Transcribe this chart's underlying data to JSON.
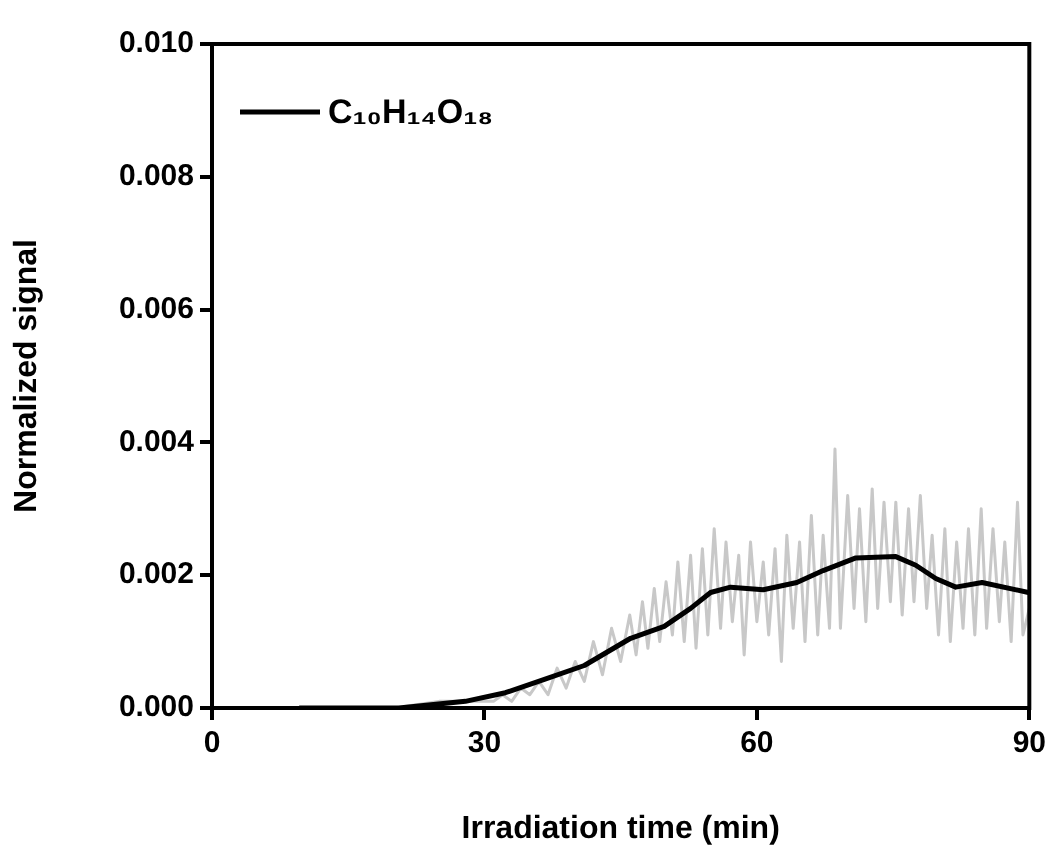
{
  "chart_data": {
    "type": "line",
    "xlabel": "Irradiation time (min)",
    "ylabel": "Normalized signal",
    "xlim": [
      0,
      90
    ],
    "xticks": [
      0,
      30,
      60,
      90
    ],
    "ylim": [
      0,
      0.01
    ],
    "yticks": [
      {
        "value": 0,
        "label": "0.000"
      },
      {
        "value": 0.002,
        "label": "0.002"
      },
      {
        "value": 0.004,
        "label": "0.004"
      },
      {
        "value": 0.006,
        "label": "0.006"
      },
      {
        "value": 0.008,
        "label": "0.008"
      },
      {
        "value": 0.01,
        "label": "0.010"
      }
    ],
    "grid": false,
    "legend": "top left",
    "marker": "none",
    "series": [
      {
        "name": "C₁₀H₁₄O₁₈",
        "color": "#000000",
        "x": [
          9.6,
          20.6,
          27.9,
          32.3,
          36.6,
          41,
          46.1,
          49.8,
          52.7,
          54.9,
          57.1,
          60.7,
          64.4,
          67.3,
          70.9,
          75.3,
          77.5,
          79.7,
          81.9,
          84.8,
          89.9
        ],
        "values": [
          0,
          0,
          0.0001,
          0.00023,
          0.00043,
          0.00064,
          0.00105,
          0.00123,
          0.0015,
          0.00174,
          0.00182,
          0.00178,
          0.00189,
          0.00207,
          0.00226,
          0.00228,
          0.00215,
          0.00195,
          0.00182,
          0.00189,
          0.00174
        ]
      },
      {
        "color": "#c8c8c8",
        "x": [
          20,
          25,
          28,
          30,
          31,
          32,
          33,
          34,
          35,
          36,
          37,
          38,
          39,
          40,
          41,
          42,
          43,
          44,
          45,
          46,
          46.7,
          47.4,
          48,
          48.7,
          49.3,
          50,
          50.7,
          51.3,
          52,
          52.7,
          53.3,
          54,
          54.6,
          55.3,
          56,
          56.6,
          57.3,
          58,
          58.6,
          59.3,
          60,
          60.7,
          61.3,
          62,
          62.7,
          63.3,
          64,
          64.7,
          65.3,
          66,
          66.7,
          67.3,
          68,
          68.6,
          69.2,
          70,
          70.7,
          71.3,
          72,
          72.7,
          73.3,
          74,
          74.7,
          75.3,
          76,
          76.7,
          77.3,
          78,
          78.7,
          79.3,
          80,
          80.7,
          81.3,
          82,
          82.7,
          83.3,
          84,
          84.7,
          85.3,
          86,
          86.7,
          87.3,
          88,
          88.7,
          89.3,
          90
        ],
        "values": [
          0,
          0.0001,
          0.0001,
          0.0001,
          0.0001,
          0.0002,
          0.0001,
          0.0003,
          0.0002,
          0.0004,
          0.0002,
          0.0006,
          0.0003,
          0.0007,
          0.0004,
          0.001,
          0.0005,
          0.0012,
          0.0007,
          0.0014,
          0.0008,
          0.0016,
          0.0009,
          0.0018,
          0.001,
          0.0019,
          0.0011,
          0.0022,
          0.001,
          0.0023,
          0.0009,
          0.0024,
          0.0011,
          0.0027,
          0.0012,
          0.0025,
          0.0013,
          0.0023,
          0.0008,
          0.0025,
          0.0013,
          0.0022,
          0.0011,
          0.0024,
          0.0007,
          0.0026,
          0.0012,
          0.0025,
          0.001,
          0.0029,
          0.0011,
          0.0026,
          0.0012,
          0.0039,
          0.0012,
          0.0032,
          0.0015,
          0.003,
          0.0013,
          0.0033,
          0.0015,
          0.0031,
          0.0016,
          0.0031,
          0.0014,
          0.003,
          0.0016,
          0.0032,
          0.0015,
          0.0026,
          0.0011,
          0.0027,
          0.001,
          0.0025,
          0.0012,
          0.0027,
          0.0011,
          0.003,
          0.0012,
          0.0027,
          0.0013,
          0.0025,
          0.001,
          0.0031,
          0.0011,
          0.0015
        ]
      }
    ]
  }
}
